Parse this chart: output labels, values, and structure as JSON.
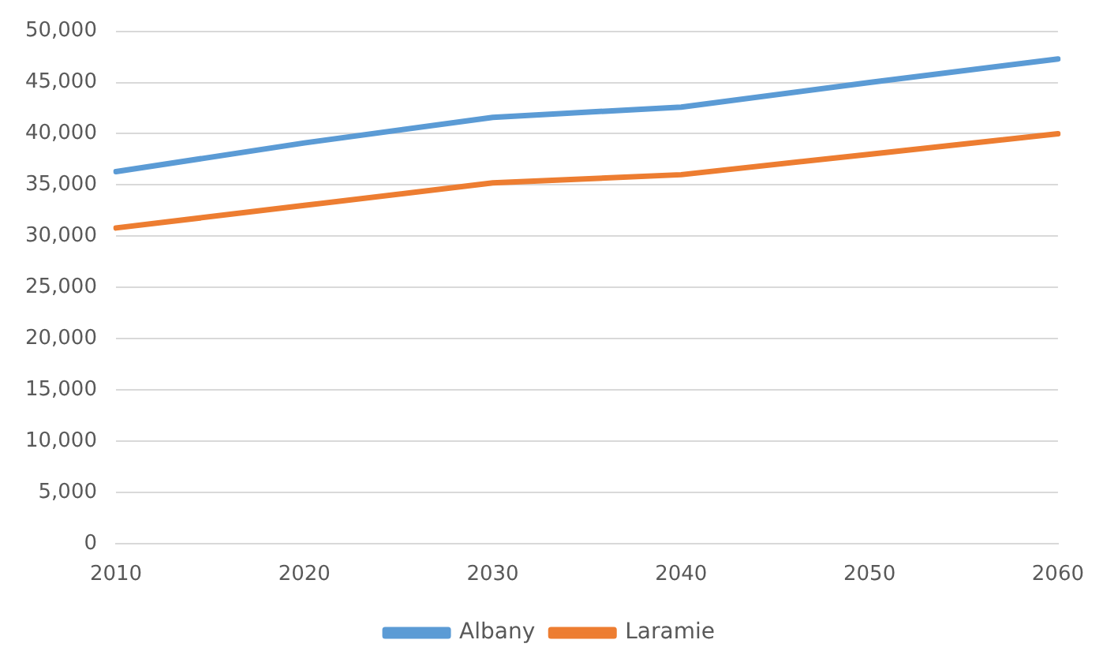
{
  "chart_data": {
    "type": "line",
    "categories": [
      "2010",
      "2020",
      "2030",
      "2040",
      "2050",
      "2060"
    ],
    "series": [
      {
        "name": "Albany",
        "color": "#5b9bd5",
        "values": [
          36300,
          39100,
          41600,
          42600,
          45000,
          47300
        ]
      },
      {
        "name": "Laramie",
        "color": "#ed7d31",
        "values": [
          30800,
          33000,
          35200,
          36000,
          38000,
          40000
        ]
      }
    ],
    "ylim": [
      0,
      50000
    ],
    "yticks": [
      {
        "value": 0,
        "label": "0"
      },
      {
        "value": 5000,
        "label": "5,000"
      },
      {
        "value": 10000,
        "label": "10,000"
      },
      {
        "value": 15000,
        "label": "15,000"
      },
      {
        "value": 20000,
        "label": "20,000"
      },
      {
        "value": 25000,
        "label": "25,000"
      },
      {
        "value": 30000,
        "label": "30,000"
      },
      {
        "value": 35000,
        "label": "35,000"
      },
      {
        "value": 40000,
        "label": "40,000"
      },
      {
        "value": 45000,
        "label": "45,000"
      },
      {
        "value": 50000,
        "label": "50,000"
      }
    ],
    "grid": "y",
    "legend": "bottom",
    "marker": "none",
    "line_style": "solid"
  }
}
